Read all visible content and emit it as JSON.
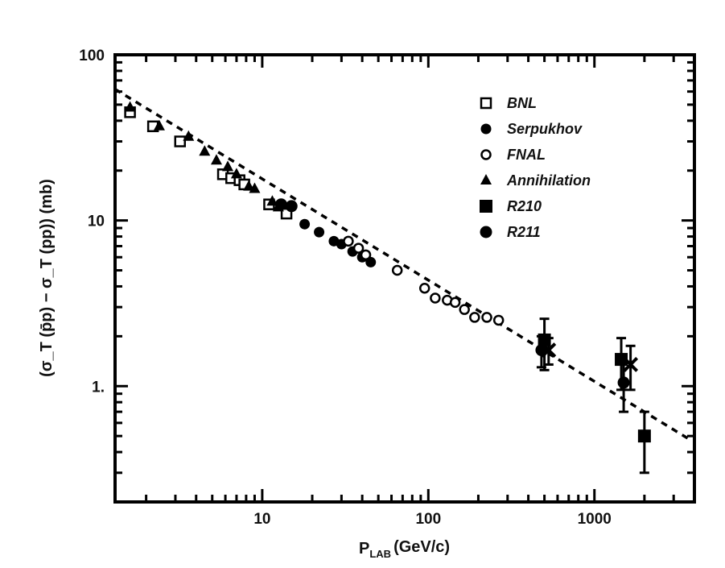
{
  "chart_data": {
    "type": "scatter",
    "xscale": "log",
    "yscale": "log",
    "xlim": [
      1.3,
      4000
    ],
    "ylim": [
      0.2,
      100
    ],
    "grid": false,
    "legend_position": "top-right",
    "xlabel": "P_LAB (GeV/c)",
    "xlabel_parts": {
      "main": "P",
      "sub": "LAB",
      "unit": "(GeV/c)"
    },
    "ylabel": "(σ_T (p̄p) − σ_T (pp)) (mb)",
    "yticks": [
      {
        "value": 100,
        "label": "100"
      },
      {
        "value": 10,
        "label": "10"
      },
      {
        "value": 1,
        "label": "1."
      }
    ],
    "xticks": [
      {
        "value": 10,
        "label": "10"
      },
      {
        "value": 100,
        "label": "100"
      },
      {
        "value": 1000,
        "label": "1000"
      }
    ],
    "series": [
      {
        "name": "BNL",
        "marker": "open-square",
        "x": [
          1.6,
          2.2,
          3.2,
          5.8,
          6.5,
          7.3,
          7.8,
          11,
          14
        ],
        "y": [
          45,
          37,
          30,
          19,
          18,
          17.5,
          16.5,
          12.5,
          11
        ]
      },
      {
        "name": "Serpukhov",
        "marker": "filled-circle",
        "x": [
          18,
          22,
          27,
          30,
          35,
          40,
          45
        ],
        "y": [
          9.5,
          8.5,
          7.5,
          7.2,
          6.5,
          6.0,
          5.6
        ]
      },
      {
        "name": "FNAL",
        "marker": "open-circle",
        "x": [
          33,
          38,
          42,
          65,
          95,
          110,
          130,
          145,
          165,
          190,
          225,
          265
        ],
        "y": [
          7.5,
          6.8,
          6.2,
          5.0,
          3.9,
          3.4,
          3.3,
          3.2,
          2.9,
          2.6,
          2.6,
          2.5
        ]
      },
      {
        "name": "Annihilation",
        "marker": "filled-triangle",
        "x": [
          1.6,
          2.4,
          3.6,
          4.5,
          5.3,
          6.2,
          7.0,
          8.3,
          9.0,
          11.5,
          12.5
        ],
        "y": [
          48,
          37,
          32,
          26,
          23,
          21,
          19,
          16,
          15.5,
          13,
          12
        ]
      },
      {
        "name": "R210",
        "marker": "filled-square",
        "x": [
          500,
          1450,
          2000
        ],
        "y": [
          1.9,
          1.45,
          0.5
        ],
        "err": [
          0.65,
          0.5,
          0.2
        ]
      },
      {
        "name": "R211",
        "marker": "filled-circle-large",
        "x": [
          13,
          15,
          480,
          1500
        ],
        "y": [
          12.5,
          12.2,
          1.65,
          1.05
        ],
        "err": [
          0,
          0,
          0.35,
          0.35
        ]
      },
      {
        "name": "",
        "marker": "x-cross",
        "x": [
          530,
          1650
        ],
        "y": [
          1.65,
          1.35
        ],
        "err": [
          0.3,
          0.4
        ]
      }
    ],
    "fit_line": {
      "style": "dashed",
      "x": [
        1.3,
        3700
      ],
      "y": [
        62,
        0.48
      ]
    }
  }
}
